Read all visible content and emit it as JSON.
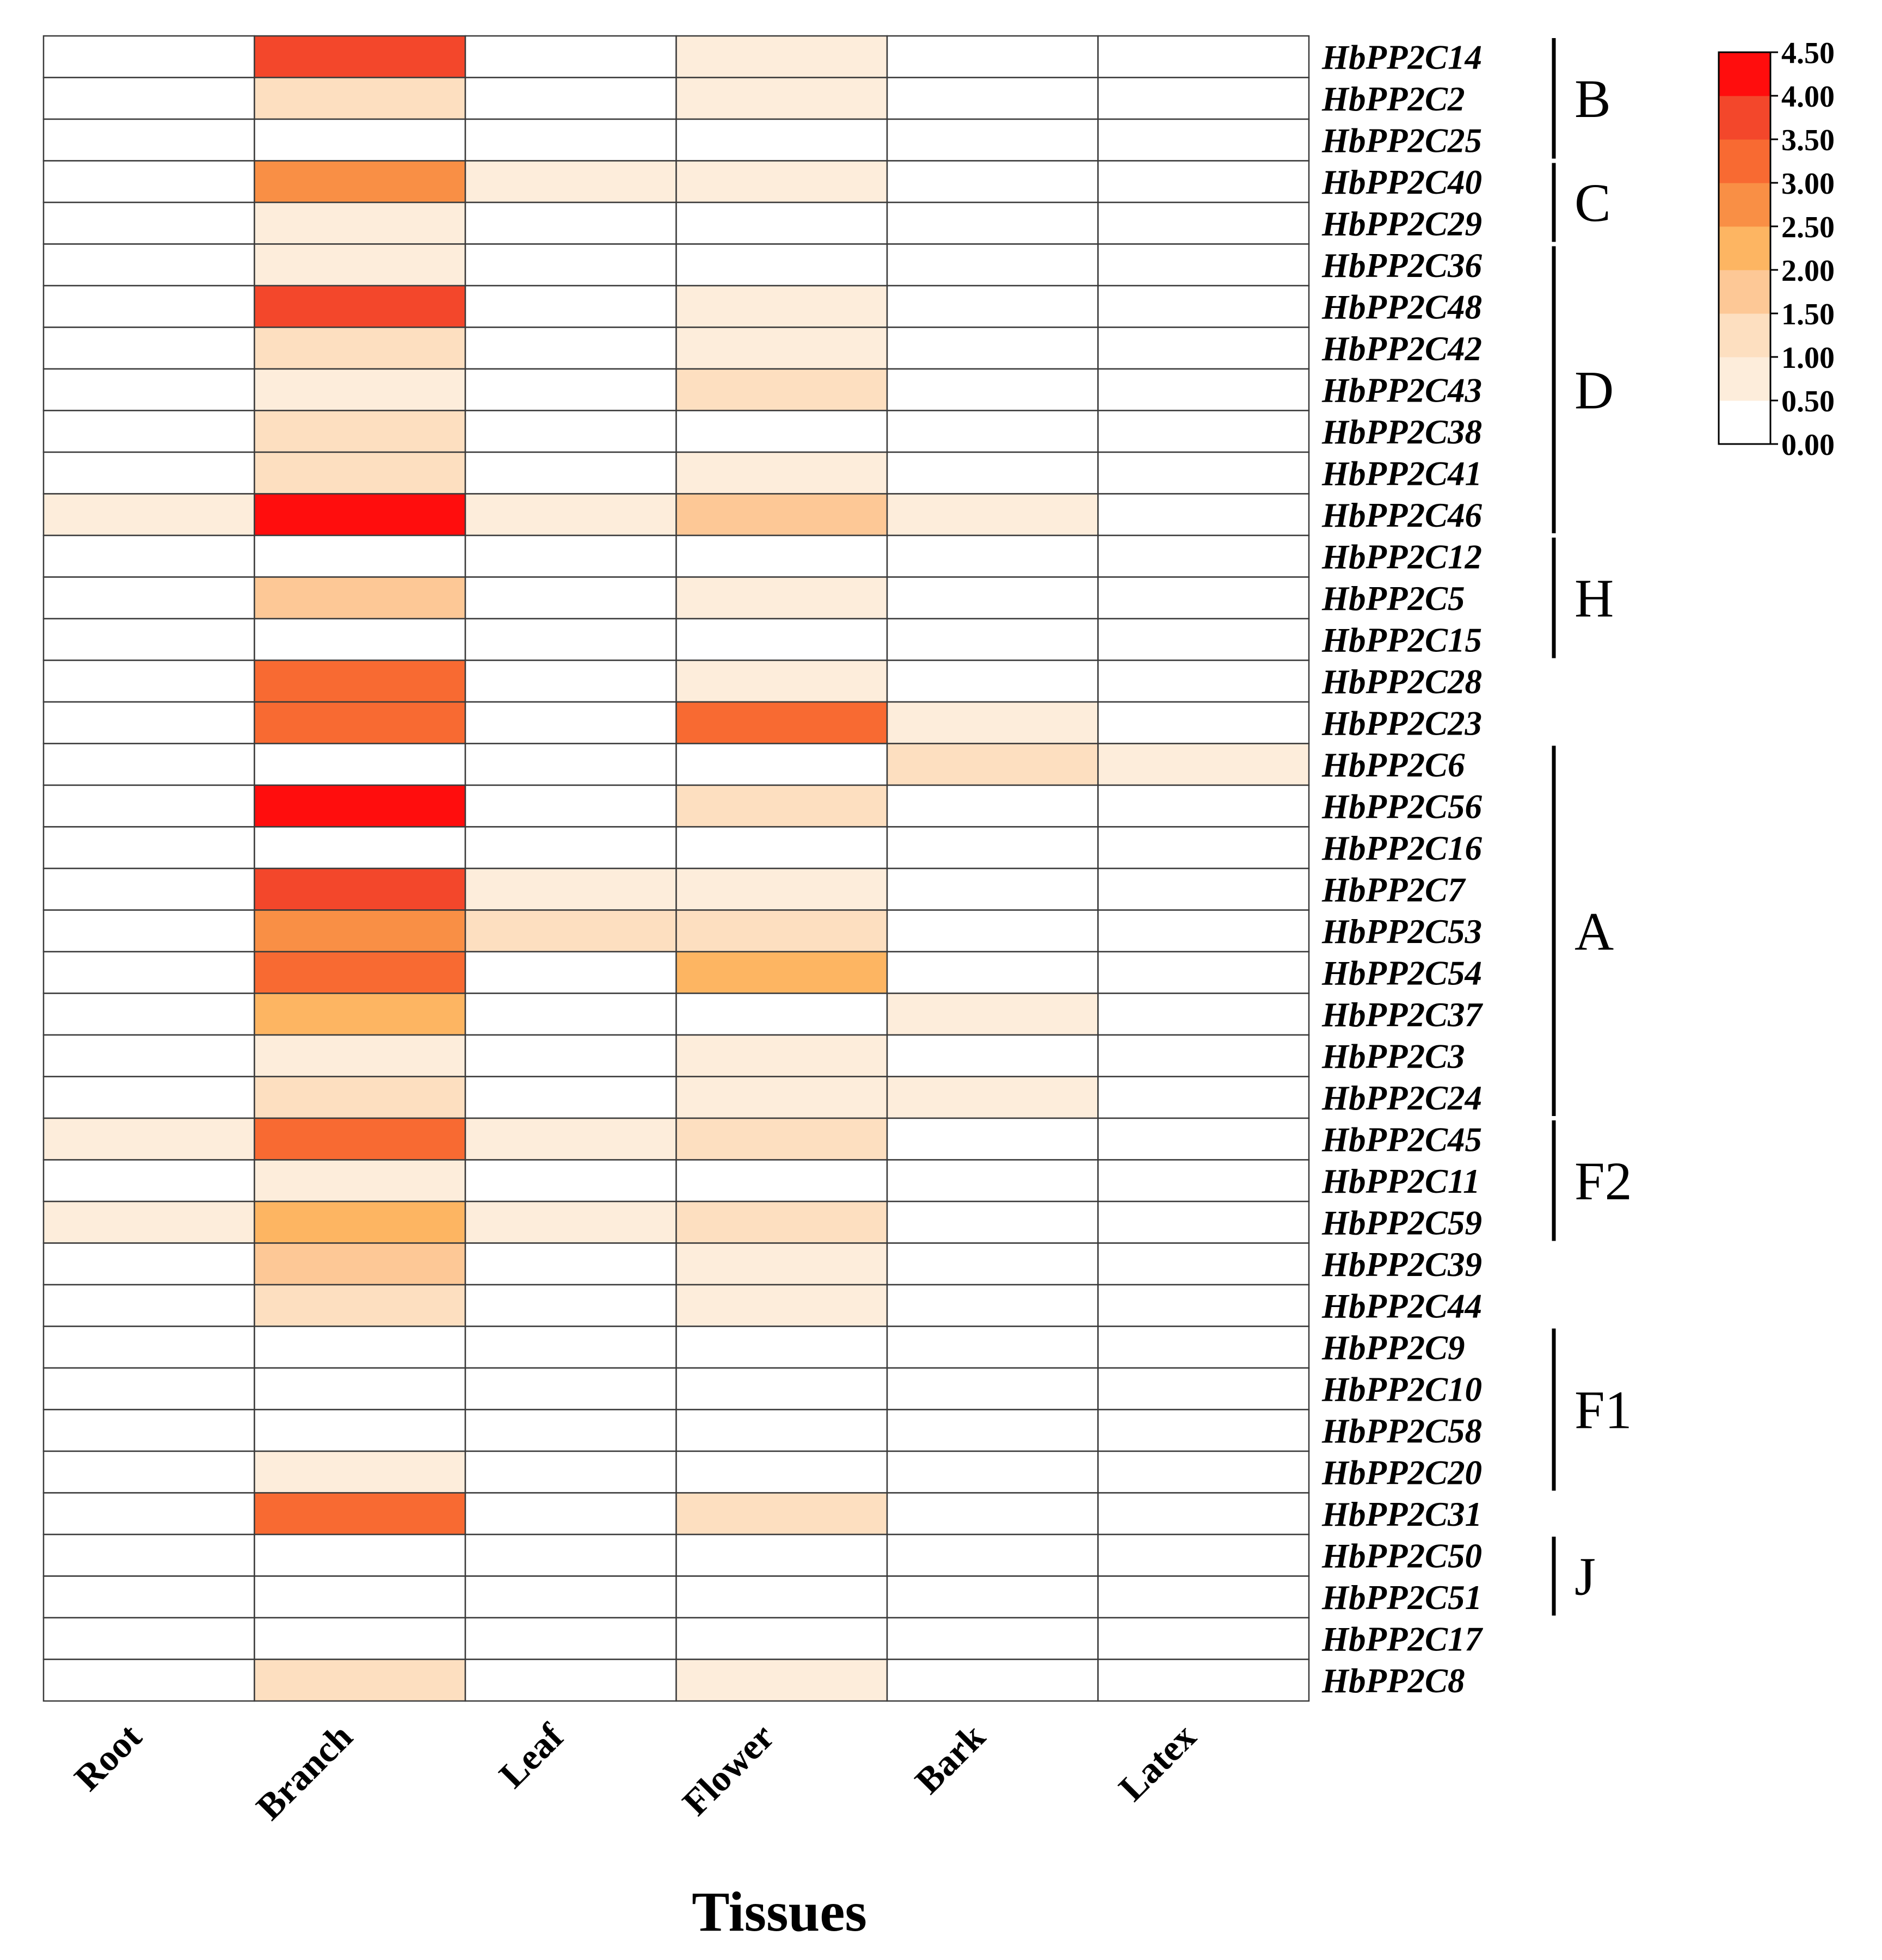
{
  "chart_data": {
    "type": "heatmap",
    "xlabel": "Tissues",
    "columns": [
      "Root",
      "Branch",
      "Leaf",
      "Flower",
      "Bark",
      "Latex"
    ],
    "rows": [
      "HbPP2C14",
      "HbPP2C2",
      "HbPP2C25",
      "HbPP2C40",
      "HbPP2C29",
      "HbPP2C36",
      "HbPP2C48",
      "HbPP2C42",
      "HbPP2C43",
      "HbPP2C38",
      "HbPP2C41",
      "HbPP2C46",
      "HbPP2C12",
      "HbPP2C5",
      "HbPP2C15",
      "HbPP2C28",
      "HbPP2C23",
      "HbPP2C6",
      "HbPP2C56",
      "HbPP2C16",
      "HbPP2C7",
      "HbPP2C53",
      "HbPP2C54",
      "HbPP2C37",
      "HbPP2C3",
      "HbPP2C24",
      "HbPP2C45",
      "HbPP2C11",
      "HbPP2C59",
      "HbPP2C39",
      "HbPP2C44",
      "HbPP2C9",
      "HbPP2C10",
      "HbPP2C58",
      "HbPP2C20",
      "HbPP2C31",
      "HbPP2C50",
      "HbPP2C51",
      "HbPP2C17",
      "HbPP2C8"
    ],
    "values": [
      [
        0,
        3.8,
        0,
        0.6,
        0,
        0
      ],
      [
        0,
        1.2,
        0,
        0.6,
        0,
        0
      ],
      [
        0,
        0,
        0,
        0,
        0,
        0
      ],
      [
        0,
        2.8,
        0.6,
        0.6,
        0,
        0
      ],
      [
        0,
        0.6,
        0,
        0,
        0,
        0
      ],
      [
        0,
        0.6,
        0,
        0,
        0,
        0
      ],
      [
        0,
        3.8,
        0,
        0.6,
        0,
        0
      ],
      [
        0,
        1.2,
        0,
        0.6,
        0,
        0
      ],
      [
        0,
        0.6,
        0,
        1.2,
        0,
        0
      ],
      [
        0,
        1.2,
        0,
        0,
        0,
        0
      ],
      [
        0,
        1.2,
        0,
        0.6,
        0,
        0
      ],
      [
        0.6,
        4.4,
        0.6,
        1.6,
        0.6,
        0
      ],
      [
        0,
        0,
        0,
        0,
        0,
        0
      ],
      [
        0,
        1.6,
        0,
        0.6,
        0,
        0
      ],
      [
        0,
        0,
        0,
        0,
        0,
        0
      ],
      [
        0,
        3.3,
        0,
        0.6,
        0,
        0
      ],
      [
        0,
        3.3,
        0,
        3.3,
        0.6,
        0
      ],
      [
        0,
        0,
        0,
        0,
        1.2,
        0.6
      ],
      [
        0,
        4.4,
        0,
        1.2,
        0,
        0
      ],
      [
        0,
        0,
        0,
        0,
        0,
        0
      ],
      [
        0,
        3.8,
        0.6,
        0.6,
        0,
        0
      ],
      [
        0,
        2.8,
        1.2,
        1.2,
        0,
        0
      ],
      [
        0,
        3.3,
        0,
        2.2,
        0,
        0
      ],
      [
        0,
        2.2,
        0,
        0,
        0.6,
        0
      ],
      [
        0,
        0.6,
        0,
        0.6,
        0,
        0
      ],
      [
        0,
        1.2,
        0,
        0.6,
        0.6,
        0
      ],
      [
        0.6,
        3.3,
        0.6,
        1.2,
        0,
        0
      ],
      [
        0,
        0.6,
        0,
        0,
        0,
        0
      ],
      [
        0.6,
        2.2,
        0.6,
        1.2,
        0,
        0
      ],
      [
        0,
        1.6,
        0,
        0.6,
        0,
        0
      ],
      [
        0,
        1.2,
        0,
        0.6,
        0,
        0
      ],
      [
        0,
        0,
        0,
        0,
        0,
        0
      ],
      [
        0,
        0,
        0,
        0,
        0,
        0
      ],
      [
        0,
        0,
        0,
        0,
        0,
        0
      ],
      [
        0,
        0.6,
        0,
        0,
        0,
        0
      ],
      [
        0,
        3.3,
        0,
        1.2,
        0,
        0
      ],
      [
        0,
        0,
        0,
        0,
        0,
        0
      ],
      [
        0,
        0,
        0,
        0,
        0,
        0
      ],
      [
        0,
        0,
        0,
        0,
        0,
        0
      ],
      [
        0,
        1.2,
        0,
        0.6,
        0,
        0
      ]
    ],
    "groups": [
      {
        "label": "B",
        "start": 0,
        "end": 2
      },
      {
        "label": "C",
        "start": 3,
        "end": 4
      },
      {
        "label": "D",
        "start": 5,
        "end": 11
      },
      {
        "label": "H",
        "start": 12,
        "end": 14
      },
      {
        "label": "A",
        "start": 17,
        "end": 25
      },
      {
        "label": "F2",
        "start": 26,
        "end": 28
      },
      {
        "label": "F1",
        "start": 31,
        "end": 34
      },
      {
        "label": "J",
        "start": 36,
        "end": 37
      }
    ],
    "colorbar": {
      "min": 0,
      "max": 4.5,
      "ticks": [
        "0.00",
        "0.50",
        "1.00",
        "1.50",
        "2.00",
        "2.50",
        "3.00",
        "3.50",
        "4.00",
        "4.50"
      ],
      "colors": [
        "#ffffff",
        "#fdeddb",
        "#fddfc0",
        "#fdc896",
        "#fdb562",
        "#f98f45",
        "#f86a32",
        "#f3472b",
        "#ff0d0d"
      ]
    }
  }
}
